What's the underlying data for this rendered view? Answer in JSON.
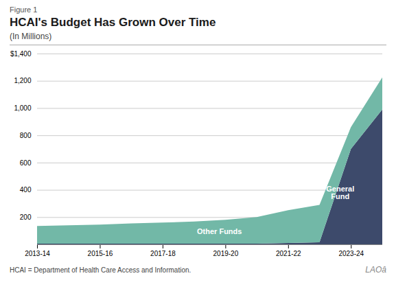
{
  "chart_data": {
    "type": "area",
    "figure_label": "Figure 1",
    "title": "HCAI's Budget Has Grown Over Time",
    "subtitle": "(In Millions)",
    "footnote": "HCAI = Department of Health Care Access and Information.",
    "annotations": [
      "LAOâ"
    ],
    "categories": [
      "2013-14",
      null,
      "2015-16",
      null,
      "2017-18",
      null,
      "2019-20",
      null,
      "2021-22",
      null,
      "2023-24",
      null
    ],
    "series": [
      {
        "name": "General\nFund",
        "color": "#3d4a6b",
        "values": [
          5,
          5,
          5,
          5,
          5,
          5,
          5,
          5,
          10,
          15,
          700,
          990
        ]
      },
      {
        "name": "Other Funds",
        "color": "#72b8a7",
        "values": [
          130,
          135,
          140,
          148,
          155,
          162,
          175,
          195,
          240,
          275,
          160,
          235
        ]
      }
    ],
    "stacked": true,
    "xlim": [
      0,
      11
    ],
    "ylim": [
      0,
      1400
    ],
    "yticks": [
      200,
      400,
      600,
      800,
      {
        "value": 1000,
        "label": "1,000"
      },
      {
        "value": 1200,
        "label": "1,200"
      },
      {
        "value": 1400,
        "label": "$1,400"
      }
    ],
    "grid": true
  }
}
